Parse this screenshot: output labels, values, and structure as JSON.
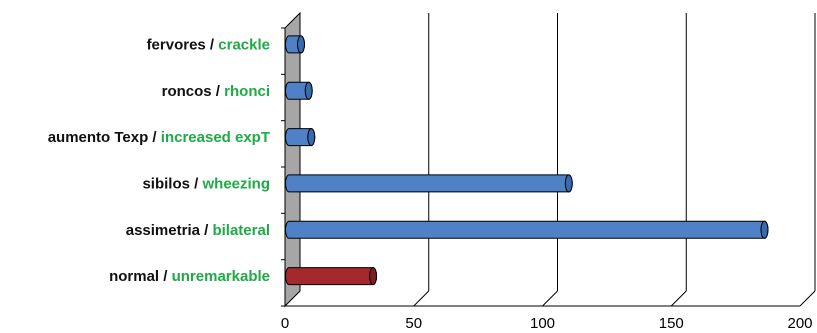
{
  "chart_data": {
    "type": "bar",
    "orientation": "horizontal",
    "style": "3d-cylinder",
    "categories": [
      {
        "es": "fervores",
        "en": "crackle"
      },
      {
        "es": "roncos",
        "en": "rhonci"
      },
      {
        "es": "aumento Texp",
        "en": "increased expT"
      },
      {
        "es": "sibilos",
        "en": "wheezing"
      },
      {
        "es": "assimetria",
        "en": "bilateral"
      },
      {
        "es": "normal",
        "en": "unremarkable"
      }
    ],
    "separator": " / ",
    "values": [
      3,
      6,
      7,
      107,
      183,
      31
    ],
    "xlim": [
      0,
      200
    ],
    "xticks": [
      "0",
      "50",
      "100",
      "150",
      "200"
    ],
    "grid": true,
    "legend": "none",
    "title": "",
    "xlabel": "",
    "ylabel": ""
  },
  "colors": {
    "bar_default": "#4f81c7",
    "bar_default_cap": "#3a69ad",
    "bar_highlight": "#a5282e",
    "bar_highlight_cap": "#7e1c21",
    "label_en": "#1faa47",
    "wall": "#a6a6a6",
    "grid": "#000000"
  }
}
